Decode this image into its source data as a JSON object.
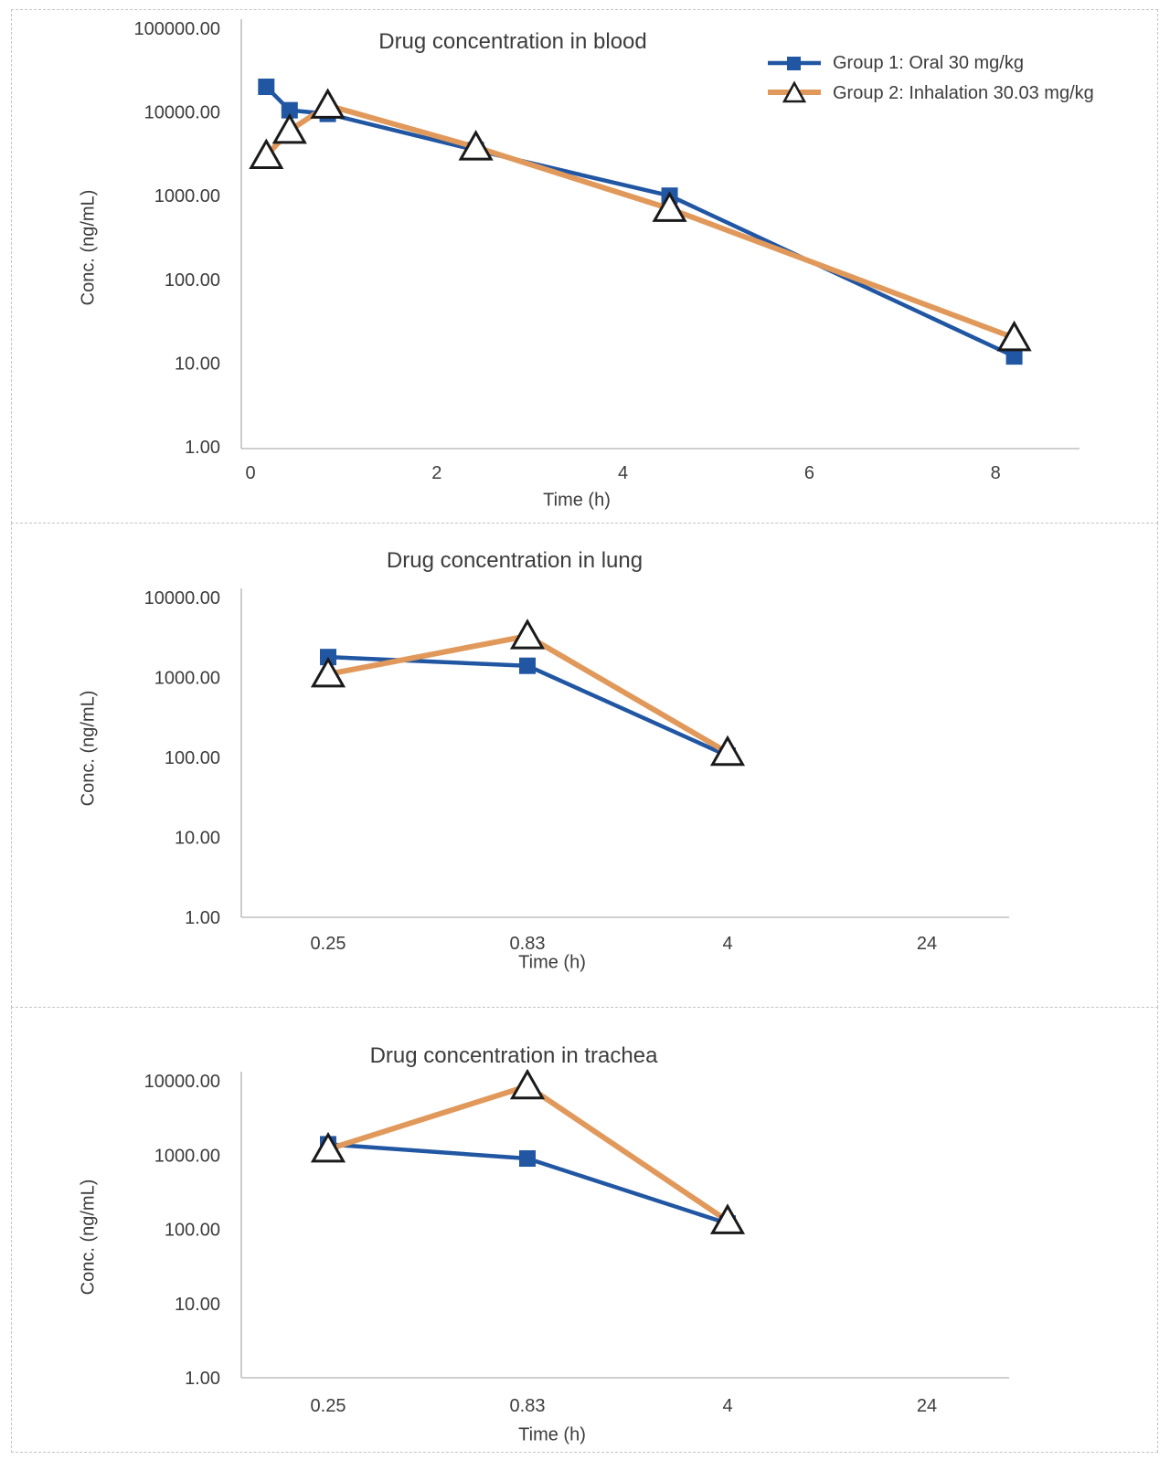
{
  "figure": {
    "legend": [
      {
        "label": "Group 1: Oral 30 mg/kg"
      },
      {
        "label": "Group 2: Inhalation 30.03 mg/kg"
      }
    ],
    "colors": {
      "group1": "#2156A3",
      "group2": "#E1995B",
      "marker_outline": "#1a1a1a",
      "axis_line": "#bfbfbf"
    }
  },
  "chart_data": [
    {
      "type": "line",
      "title": "Drug concentration in blood",
      "xlabel": "Time (h)",
      "ylabel": "Conc. (ng/mL)",
      "y_scale": "log",
      "ylim": [
        1,
        100000
      ],
      "y_ticks": [
        "100000.00",
        "10000.00",
        "1000.00",
        "100.00",
        "10.00",
        "1.00"
      ],
      "x_axis": "numeric",
      "xlim": [
        0,
        9
      ],
      "x_ticks": [
        "0",
        "2",
        "4",
        "6",
        "8"
      ],
      "x_tick_values": [
        0,
        2,
        4,
        6,
        8
      ],
      "grid": false,
      "legend_position": "top-right",
      "series": [
        {
          "name": "Group 1: Oral 30 mg/kg",
          "color": "#2156A3",
          "marker": "square",
          "x": [
            0.17,
            0.42,
            0.83,
            2.42,
            4.5,
            8.2
          ],
          "values": [
            20000,
            10500,
            9500,
            3500,
            1000,
            12
          ]
        },
        {
          "name": "Group 2: Inhalation 30.03 mg/kg",
          "color": "#E1995B",
          "marker": "triangle",
          "x": [
            0.17,
            0.42,
            0.83,
            2.42,
            4.5,
            8.2
          ],
          "values": [
            3000,
            6000,
            12000,
            3800,
            700,
            20
          ]
        }
      ]
    },
    {
      "type": "line",
      "title": "Drug concentration in lung",
      "xlabel": "Time (h)",
      "ylabel": "Conc. (ng/mL)",
      "y_scale": "log",
      "ylim": [
        1,
        10000
      ],
      "y_ticks": [
        "10000.00",
        "1000.00",
        "100.00",
        "10.00",
        "1.00"
      ],
      "x_axis": "categorical",
      "categories": [
        "0.25",
        "0.83",
        "4",
        "24"
      ],
      "grid": false,
      "legend_position": "none",
      "series": [
        {
          "name": "Group 1: Oral 30 mg/kg",
          "color": "#2156A3",
          "marker": "square",
          "values": [
            1800,
            1400,
            105,
            null
          ]
        },
        {
          "name": "Group 2: Inhalation 30.03 mg/kg",
          "color": "#E1995B",
          "marker": "triangle",
          "values": [
            1100,
            3300,
            115,
            null
          ]
        }
      ]
    },
    {
      "type": "line",
      "title": "Drug concentration in trachea",
      "xlabel": "Time (h)",
      "ylabel": "Conc. (ng/mL)",
      "y_scale": "log",
      "ylim": [
        1,
        10000
      ],
      "y_ticks": [
        "10000.00",
        "1000.00",
        "100.00",
        "10.00",
        "1.00"
      ],
      "x_axis": "categorical",
      "categories": [
        "0.25",
        "0.83",
        "4",
        "24"
      ],
      "grid": false,
      "legend_position": "none",
      "series": [
        {
          "name": "Group 1: Oral 30 mg/kg",
          "color": "#2156A3",
          "marker": "square",
          "values": [
            1400,
            900,
            120,
            null
          ]
        },
        {
          "name": "Group 2: Inhalation 30.03 mg/kg",
          "color": "#E1995B",
          "marker": "triangle",
          "values": [
            1200,
            8500,
            130,
            null
          ]
        }
      ]
    }
  ]
}
